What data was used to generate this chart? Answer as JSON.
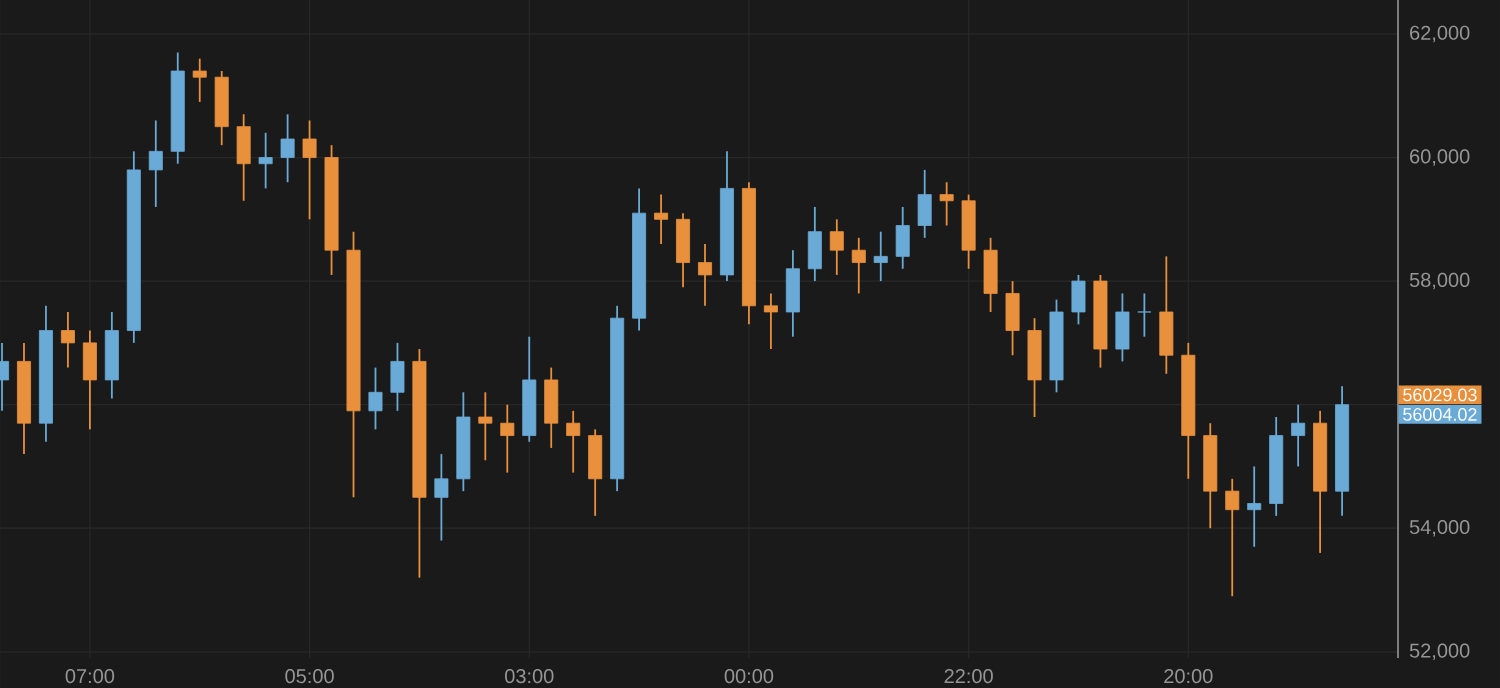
{
  "chart_data": {
    "type": "candlestick",
    "categories": [
      null,
      null,
      null,
      null,
      "07:00",
      null,
      null,
      null,
      null,
      null,
      null,
      null,
      null,
      null,
      "05:00",
      null,
      null,
      null,
      null,
      null,
      null,
      null,
      null,
      null,
      "03:00",
      null,
      null,
      null,
      null,
      null,
      null,
      null,
      null,
      null,
      "00:00",
      null,
      null,
      null,
      null,
      null,
      null,
      null,
      null,
      null,
      "22:00",
      null,
      null,
      null,
      null,
      null,
      null,
      null,
      null,
      null,
      "20:00",
      null,
      null,
      null,
      null,
      null,
      null,
      null
    ],
    "ohlc": [
      [
        56400,
        57000,
        55900,
        56700
      ],
      [
        56700,
        57000,
        55200,
        55700
      ],
      [
        55700,
        57600,
        55400,
        57200
      ],
      [
        57200,
        57500,
        56600,
        57000
      ],
      [
        57000,
        57200,
        55600,
        56400
      ],
      [
        56400,
        57500,
        56100,
        57200
      ],
      [
        57200,
        60100,
        57000,
        59800
      ],
      [
        59800,
        60600,
        59200,
        60100
      ],
      [
        60100,
        61700,
        59900,
        61400
      ],
      [
        61400,
        61600,
        60900,
        61300
      ],
      [
        61300,
        61400,
        60200,
        60500
      ],
      [
        60500,
        60700,
        59300,
        59900
      ],
      [
        59900,
        60400,
        59500,
        60000
      ],
      [
        60000,
        60700,
        59600,
        60300
      ],
      [
        60300,
        60600,
        59000,
        60000
      ],
      [
        60000,
        60200,
        58100,
        58500
      ],
      [
        58500,
        58800,
        54500,
        55900
      ],
      [
        55900,
        56600,
        55600,
        56200
      ],
      [
        56200,
        57000,
        55900,
        56700
      ],
      [
        56700,
        56900,
        53200,
        54500
      ],
      [
        54500,
        55200,
        53800,
        54800
      ],
      [
        54800,
        56200,
        54600,
        55800
      ],
      [
        55800,
        56200,
        55100,
        55700
      ],
      [
        55700,
        56000,
        54900,
        55500
      ],
      [
        55500,
        57100,
        55400,
        56400
      ],
      [
        56400,
        56600,
        55300,
        55700
      ],
      [
        55700,
        55900,
        54900,
        55500
      ],
      [
        55500,
        55600,
        54200,
        54800
      ],
      [
        54800,
        57600,
        54600,
        57400
      ],
      [
        57400,
        59500,
        57200,
        59100
      ],
      [
        59100,
        59400,
        58600,
        59000
      ],
      [
        59000,
        59100,
        57900,
        58300
      ],
      [
        58300,
        58600,
        57600,
        58100
      ],
      [
        58100,
        60100,
        58000,
        59500
      ],
      [
        59500,
        59600,
        57300,
        57600
      ],
      [
        57600,
        57800,
        56900,
        57500
      ],
      [
        57500,
        58500,
        57100,
        58200
      ],
      [
        58200,
        59200,
        58000,
        58800
      ],
      [
        58800,
        59000,
        58100,
        58500
      ],
      [
        58500,
        58700,
        57800,
        58300
      ],
      [
        58300,
        58800,
        58000,
        58400
      ],
      [
        58400,
        59200,
        58200,
        58900
      ],
      [
        58900,
        59800,
        58700,
        59400
      ],
      [
        59400,
        59600,
        58900,
        59300
      ],
      [
        59300,
        59400,
        58200,
        58500
      ],
      [
        58500,
        58700,
        57500,
        57800
      ],
      [
        57800,
        58000,
        56800,
        57200
      ],
      [
        57200,
        57400,
        55800,
        56400
      ],
      [
        56400,
        57700,
        56200,
        57500
      ],
      [
        57500,
        58100,
        57300,
        58000
      ],
      [
        58000,
        58100,
        56600,
        56900
      ],
      [
        56900,
        57800,
        56700,
        57500
      ],
      [
        57500,
        57800,
        57100,
        57500
      ],
      [
        57500,
        58400,
        56500,
        56800
      ],
      [
        56800,
        57000,
        54800,
        55500
      ],
      [
        55500,
        55700,
        54000,
        54600
      ],
      [
        54600,
        54800,
        52900,
        54300
      ],
      [
        54300,
        55000,
        53700,
        54400
      ],
      [
        54400,
        55800,
        54200,
        55500
      ],
      [
        55500,
        56000,
        55000,
        55700
      ],
      [
        55700,
        55900,
        53600,
        54600
      ],
      [
        54600,
        56300,
        54200,
        56000
      ]
    ],
    "colors": [
      "#6aaad6",
      "#e8903c",
      "#6aaad6",
      "#e8903c",
      "#e8903c",
      "#6aaad6",
      "#6aaad6",
      "#6aaad6",
      "#6aaad6",
      "#e8903c",
      "#e8903c",
      "#e8903c",
      "#6aaad6",
      "#6aaad6",
      "#e8903c",
      "#e8903c",
      "#e8903c",
      "#6aaad6",
      "#6aaad6",
      "#e8903c",
      "#6aaad6",
      "#6aaad6",
      "#e8903c",
      "#e8903c",
      "#6aaad6",
      "#e8903c",
      "#e8903c",
      "#e8903c",
      "#6aaad6",
      "#6aaad6",
      "#e8903c",
      "#e8903c",
      "#e8903c",
      "#6aaad6",
      "#e8903c",
      "#e8903c",
      "#6aaad6",
      "#6aaad6",
      "#e8903c",
      "#e8903c",
      "#6aaad6",
      "#6aaad6",
      "#6aaad6",
      "#e8903c",
      "#e8903c",
      "#e8903c",
      "#e8903c",
      "#e8903c",
      "#6aaad6",
      "#6aaad6",
      "#e8903c",
      "#6aaad6",
      "#6aaad6",
      "#e8903c",
      "#e8903c",
      "#e8903c",
      "#e8903c",
      "#6aaad6",
      "#6aaad6",
      "#6aaad6",
      "#e8903c",
      "#6aaad6"
    ],
    "ylim": [
      51900,
      62550
    ],
    "yticks": [
      {
        "value": 52000,
        "label": "52,000"
      },
      {
        "value": 54000,
        "label": "54,000"
      },
      {
        "value": 56000,
        "label": null
      },
      {
        "value": 58000,
        "label": "58,000"
      },
      {
        "value": 60000,
        "label": "60,000"
      },
      {
        "value": 62000,
        "label": "62,000"
      }
    ],
    "grid": true,
    "annotations": [
      "56029.03",
      "56004.02"
    ]
  }
}
